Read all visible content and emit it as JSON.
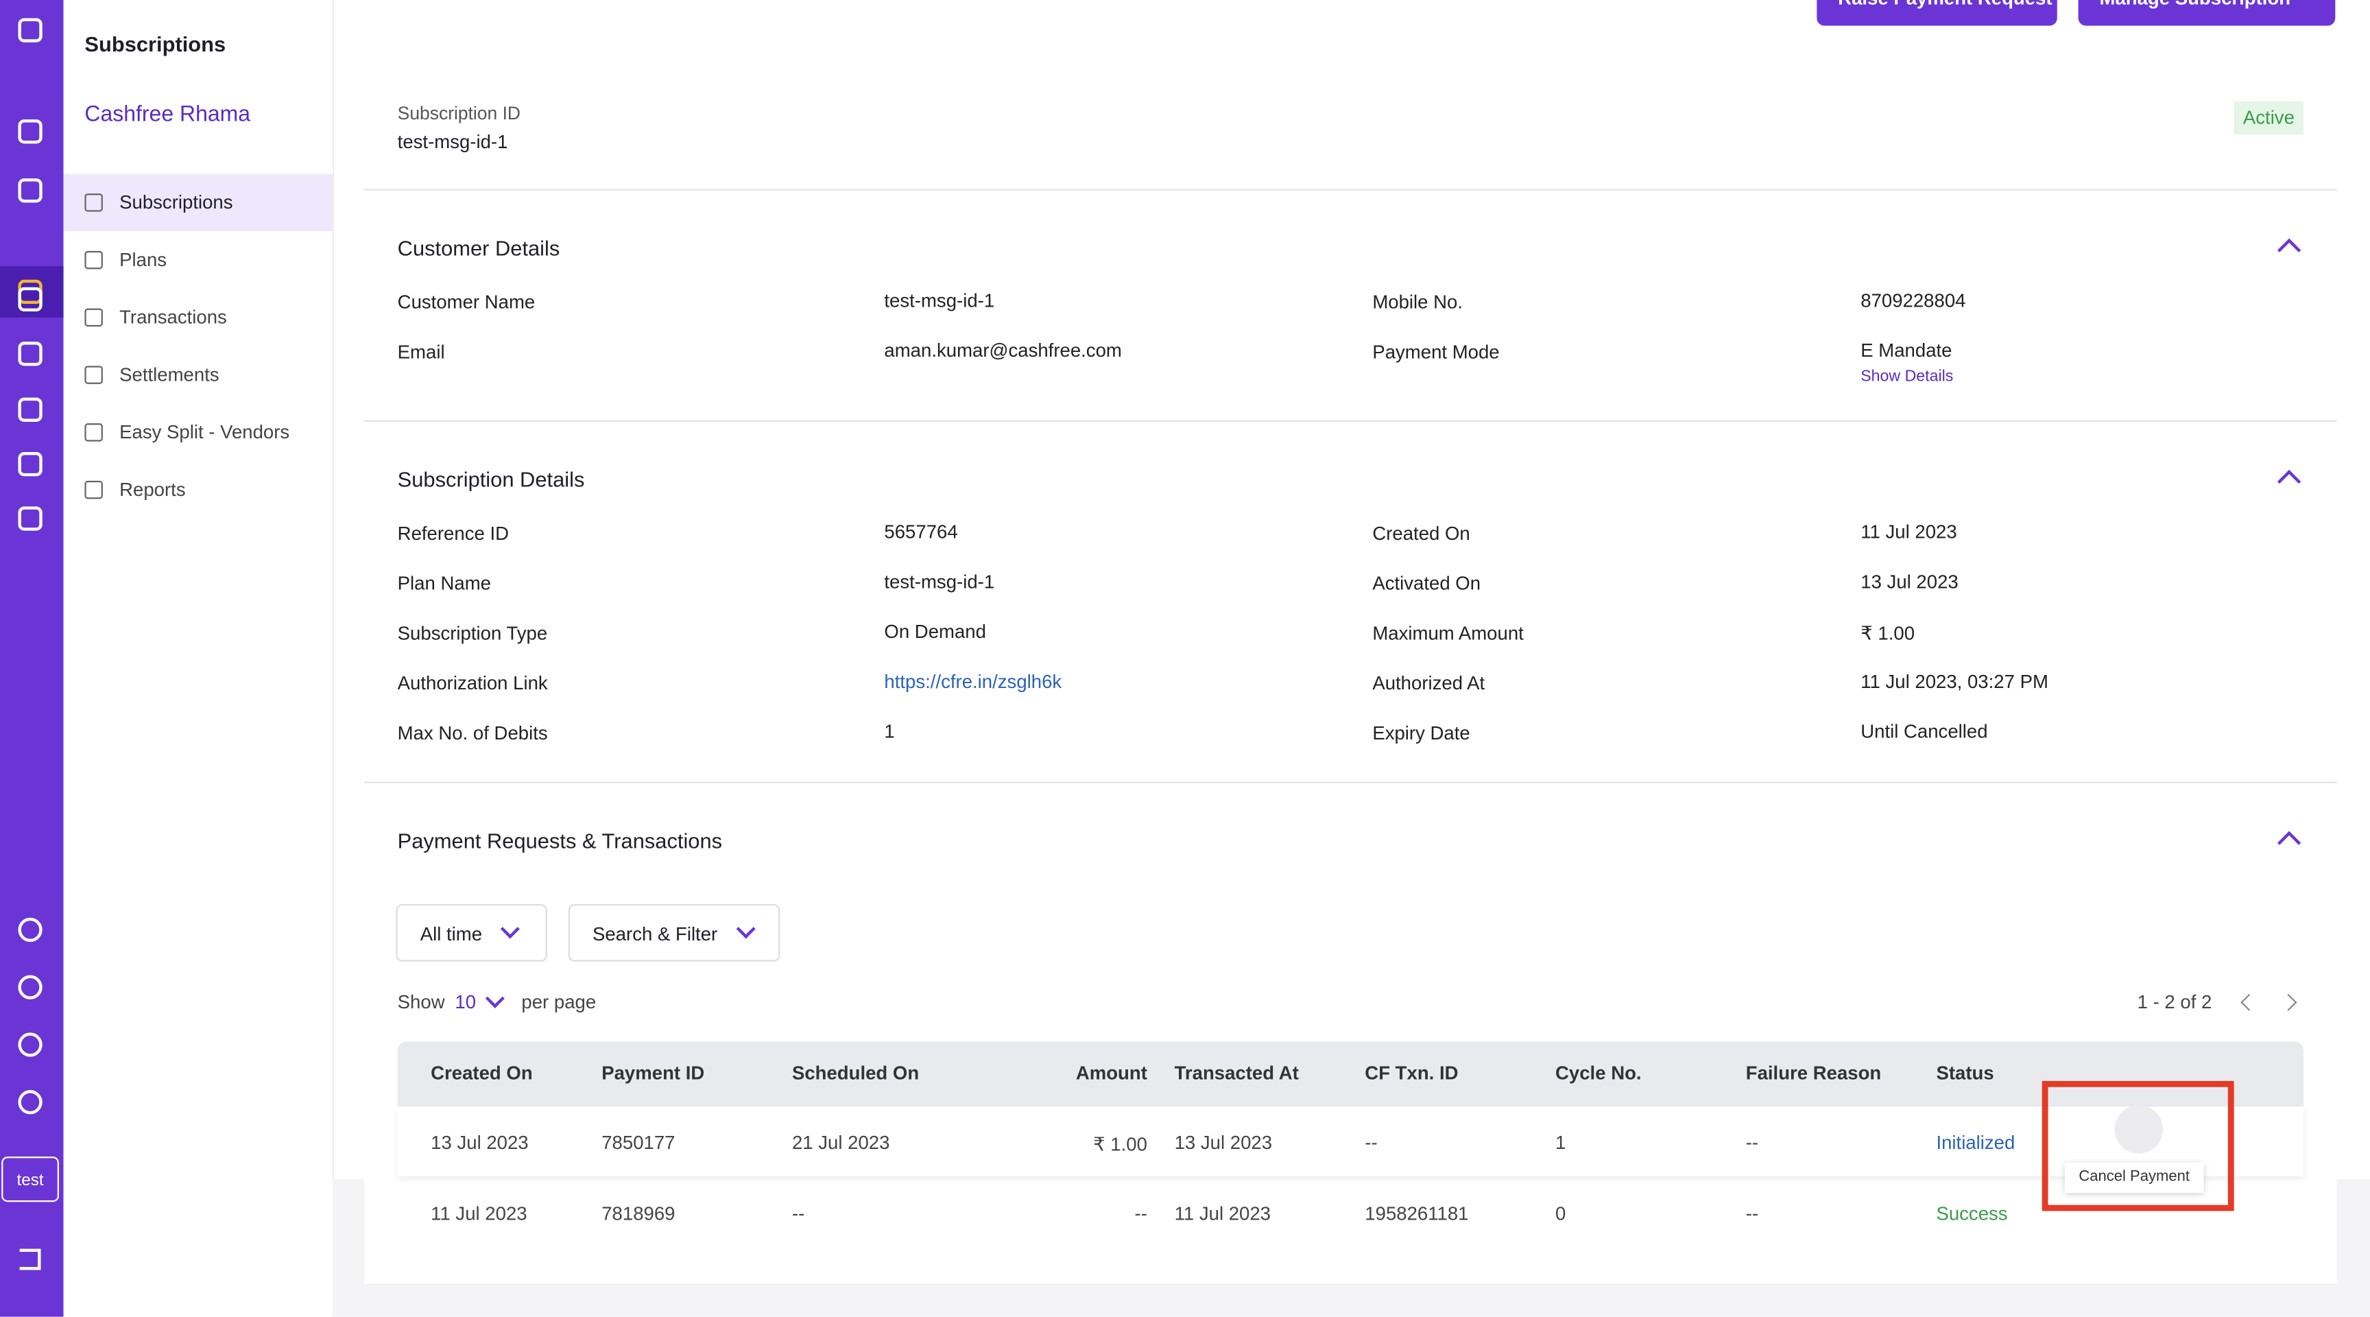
{
  "sidebar": {
    "section": "Subscriptions",
    "merchant": "Cashfree Rhama",
    "nav": [
      "Subscriptions",
      "Plans",
      "Transactions",
      "Settlements",
      "Easy Split - Vendors",
      "Reports"
    ],
    "user": "test"
  },
  "actions": [
    "Raise Payment Request",
    "Manage Subscription"
  ],
  "subscription": {
    "id_label": "Subscription ID",
    "id": "test-msg-id-1",
    "status": "Active"
  },
  "customer_details": {
    "title": "Customer Details",
    "fields": [
      [
        "Customer Name",
        "test-msg-id-1"
      ],
      [
        "Mobile No.",
        "8709228804"
      ],
      [
        "Email",
        "aman.kumar@cashfree.com"
      ],
      [
        "Payment Mode",
        "E Mandate"
      ]
    ],
    "show_details": "Show Details"
  },
  "subscription_details": {
    "title": "Subscription Details",
    "fields": [
      [
        "Reference ID",
        "5657764"
      ],
      [
        "Created On",
        "11 Jul 2023"
      ],
      [
        "Plan Name",
        "test-msg-id-1"
      ],
      [
        "Activated On",
        "13 Jul 2023"
      ],
      [
        "Subscription Type",
        "On Demand"
      ],
      [
        "Maximum Amount",
        "₹ 1.00"
      ],
      [
        "Authorization Link",
        "https://cfre.in/zsglh6k"
      ],
      [
        "Authorized At",
        "11 Jul 2023, 03:27 PM"
      ],
      [
        "Max No. of Debits",
        "1"
      ],
      [
        "Expiry Date",
        "Until Cancelled"
      ]
    ]
  },
  "payments": {
    "title": "Payment Requests & Transactions",
    "filters": [
      "All time",
      "Search & Filter"
    ],
    "show": "Show",
    "per_page_value": "10",
    "per_page": "per page",
    "range": "1 - 2 of 2",
    "columns": [
      "Created On",
      "Payment ID",
      "Scheduled On",
      "Amount",
      "Transacted At",
      "CF Txn. ID",
      "Cycle No.",
      "Failure Reason",
      "Status"
    ],
    "rows": [
      [
        "13 Jul 2023",
        "7850177",
        "21 Jul 2023",
        "₹ 1.00",
        "13 Jul 2023",
        "--",
        "1",
        "--",
        "Initialized"
      ],
      [
        "11 Jul 2023",
        "7818969",
        "--",
        "--",
        "11 Jul 2023",
        "1958261181",
        "0",
        "--",
        "Success"
      ]
    ]
  },
  "tooltip": "Cancel Payment"
}
